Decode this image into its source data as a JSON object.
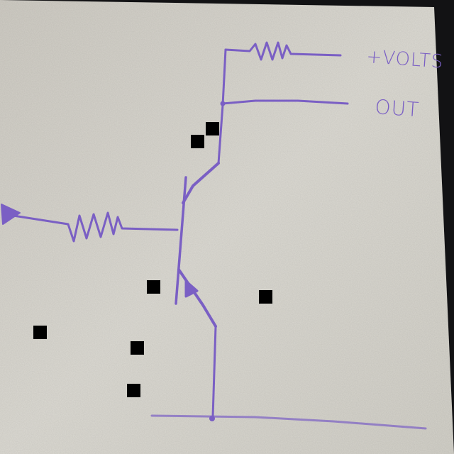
{
  "labels": {
    "supply": "+VOLTS",
    "output": "OUT"
  },
  "colors": {
    "ink": "#7a5fc4",
    "paper": "#d8d6cf",
    "background": "#121214"
  }
}
